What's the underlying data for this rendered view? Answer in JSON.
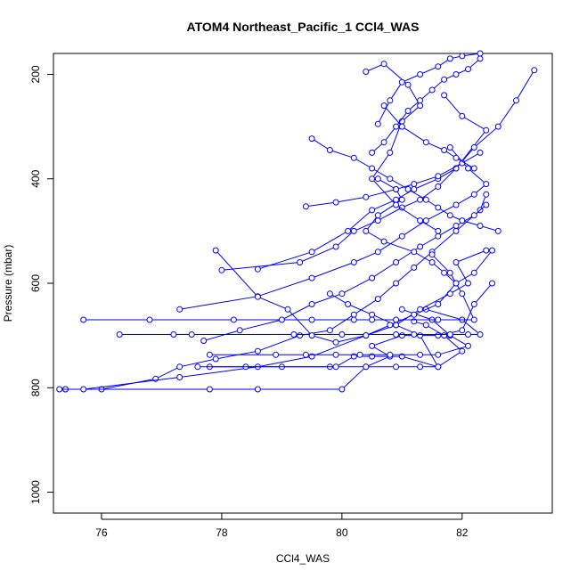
{
  "chart_data": {
    "type": "line",
    "title": "ATOM4 Northeast_Pacific_1 CCl4_WAS",
    "xlabel": "CCl4_WAS",
    "ylabel": "Pressure (mbar)",
    "xlim": [
      75.2,
      83.5
    ],
    "ylim": [
      1040,
      160
    ],
    "y_reversed": true,
    "x_ticks": [
      76,
      78,
      80,
      82
    ],
    "y_ticks": [
      200,
      400,
      600,
      800,
      1000
    ],
    "grid": false,
    "legend": "none",
    "color": "#0000ff",
    "marker": "open-circle",
    "series": [
      {
        "x": [
          75.4,
          76.0,
          76.9,
          77.3,
          77.9,
          78.6,
          79.3,
          79.8,
          80.2,
          80.6,
          80.9,
          81.2,
          81.5,
          81.9,
          82.3,
          82.4
        ],
        "y": [
          803,
          803,
          783,
          760,
          745,
          730,
          700,
          690,
          660,
          630,
          600,
          570,
          540,
          500,
          460,
          430
        ]
      },
      {
        "x": [
          75.4,
          78.6,
          77.8,
          80.0,
          80.4,
          80.8,
          80.5,
          81.0,
          81.6,
          82.0,
          82.2,
          82.5
        ],
        "y": [
          803,
          803,
          803,
          803,
          760,
          740,
          720,
          700,
          700,
          690,
          640,
          600
        ]
      },
      {
        "x": [
          75.3,
          75.7,
          77.3,
          78.6,
          79.5,
          80.4,
          80.9,
          81.3,
          81.8,
          82.1,
          81.9,
          82.4
        ],
        "y": [
          803,
          803,
          780,
          760,
          740,
          700,
          680,
          650,
          620,
          600,
          560,
          537
        ]
      },
      {
        "x": [
          77.8,
          78.4,
          79.0,
          79.8,
          80.4,
          80.9,
          81.3,
          81.6,
          82.0,
          81.7,
          81.4,
          81.2
        ],
        "y": [
          760,
          760,
          760,
          760,
          760,
          760,
          760,
          760,
          730,
          700,
          680,
          673
        ]
      },
      {
        "x": [
          77.6,
          79.9,
          80.2,
          80.5,
          81.0,
          81.6,
          81.6,
          81.3,
          80.9,
          80.5,
          80.1,
          79.8
        ],
        "y": [
          760,
          760,
          740,
          740,
          740,
          760,
          760,
          700,
          680,
          660,
          640,
          620
        ]
      },
      {
        "x": [
          77.8,
          78.9,
          79.4,
          79.9,
          80.3,
          80.8,
          81.3,
          81.6,
          82.1,
          81.8,
          81.5,
          81.0
        ],
        "y": [
          737,
          737,
          737,
          737,
          737,
          737,
          737,
          737,
          720,
          700,
          670,
          650
        ]
      },
      {
        "x": [
          76.3,
          77.2,
          77.5,
          79.2,
          80.0,
          80.9,
          81.2,
          81.8,
          82.1,
          82.3,
          82.0,
          81.4
        ],
        "y": [
          698,
          698,
          698,
          698,
          698,
          698,
          698,
          698,
          698,
          698,
          670,
          650
        ]
      },
      {
        "x": [
          75.7,
          76.8,
          78.2,
          79.5,
          80.2,
          80.5,
          80.9,
          81.6,
          82.2,
          82.0,
          81.8,
          81.5
        ],
        "y": [
          670,
          670,
          670,
          670,
          670,
          670,
          670,
          670,
          670,
          620,
          580,
          545
        ]
      },
      {
        "x": [
          77.3,
          78.6,
          79.5,
          80.2,
          80.6,
          81.0,
          81.4,
          81.9,
          82.2,
          82.4,
          82.1,
          81.8
        ],
        "y": [
          650,
          625,
          590,
          560,
          540,
          510,
          480,
          450,
          430,
          410,
          380,
          340
        ]
      },
      {
        "x": [
          78.0,
          79.3,
          79.9,
          80.2,
          80.6,
          81.0,
          81.3,
          81.6,
          81.9,
          82.4,
          82.0,
          81.7
        ],
        "y": [
          575,
          560,
          530,
          500,
          480,
          455,
          440,
          415,
          380,
          307,
          280,
          240
        ]
      },
      {
        "x": [
          78.6,
          79.5,
          80.1,
          80.5,
          80.9,
          81.2,
          81.6,
          81.9,
          82.2,
          82.6,
          82.9,
          83.2
        ],
        "y": [
          573,
          540,
          500,
          460,
          440,
          420,
          400,
          380,
          340,
          300,
          250,
          192
        ]
      },
      {
        "x": [
          77.9,
          78.6,
          79.1,
          79.5,
          79.9,
          80.4,
          80.8,
          81.2,
          81.6,
          81.9,
          82.2,
          82.5
        ],
        "y": [
          537,
          626,
          650,
          700,
          713,
          700,
          680,
          660,
          640,
          600,
          580,
          537
        ]
      },
      {
        "x": [
          77.7,
          78.3,
          79.0,
          79.5,
          80.0,
          80.5,
          80.9,
          81.3,
          81.6,
          81.9,
          82.2,
          82.4
        ],
        "y": [
          710,
          690,
          670,
          640,
          620,
          590,
          560,
          530,
          510,
          490,
          470,
          450
        ]
      },
      {
        "x": [
          79.4,
          79.9,
          80.4,
          80.9,
          81.2,
          81.6,
          82.0,
          82.3
        ],
        "y": [
          453,
          445,
          435,
          420,
          410,
          395,
          370,
          350
        ]
      },
      {
        "x": [
          79.5,
          79.8,
          80.2,
          80.5,
          80.8,
          81.1,
          81.4,
          81.6,
          81.8,
          82.0,
          82.3,
          82.6
        ],
        "y": [
          323,
          345,
          360,
          380,
          400,
          420,
          440,
          455,
          470,
          480,
          490,
          500
        ]
      },
      {
        "x": [
          80.6,
          80.9,
          81.0,
          80.6,
          80.4,
          80.7,
          81.2,
          81.5,
          81.7,
          81.9
        ],
        "y": [
          400,
          420,
          440,
          470,
          500,
          520,
          540,
          560,
          580,
          600
        ]
      },
      {
        "x": [
          80.4,
          80.7,
          81.1,
          81.3,
          81.0,
          80.8,
          80.5,
          80.9,
          81.3,
          81.6
        ],
        "y": [
          195,
          180,
          220,
          260,
          290,
          350,
          400,
          450,
          480,
          500
        ]
      },
      {
        "x": [
          80.5,
          80.7,
          80.9,
          81.1,
          81.3,
          81.5,
          81.7,
          81.9,
          82.1,
          82.3
        ],
        "y": [
          350,
          330,
          300,
          270,
          250,
          230,
          210,
          200,
          190,
          170
        ]
      },
      {
        "x": [
          80.6,
          80.8,
          81.0,
          81.3,
          81.6,
          81.8,
          82.0,
          82.3
        ],
        "y": [
          295,
          250,
          215,
          200,
          185,
          170,
          165,
          160
        ]
      },
      {
        "x": [
          80.7,
          81.0,
          81.4,
          81.7,
          81.9,
          82.2
        ],
        "y": [
          260,
          300,
          330,
          345,
          360,
          380
        ]
      }
    ]
  }
}
